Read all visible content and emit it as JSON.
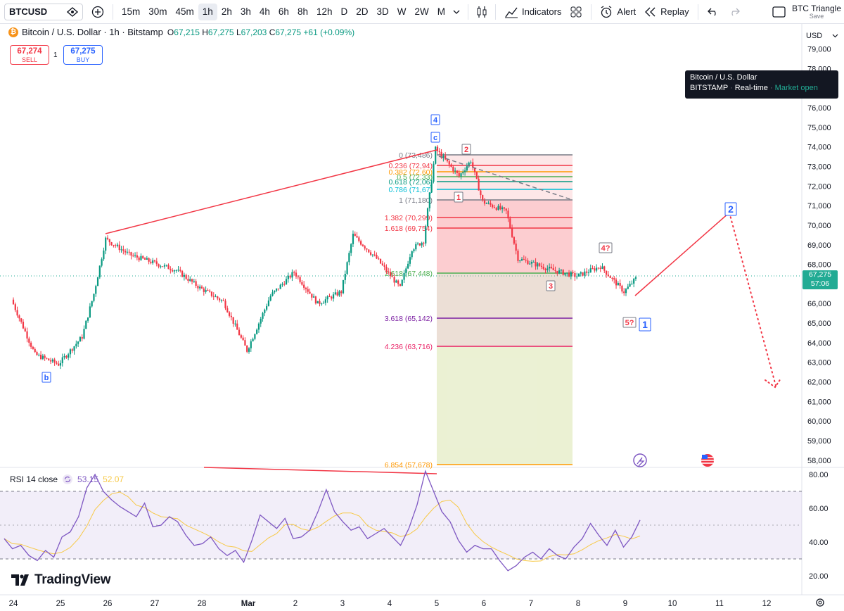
{
  "toolbar": {
    "symbol": "BTCUSD",
    "intervals": [
      "15m",
      "30m",
      "45m",
      "1h",
      "2h",
      "3h",
      "4h",
      "6h",
      "8h",
      "12h",
      "D",
      "2D",
      "3D",
      "W",
      "2W",
      "M"
    ],
    "active_interval": "1h",
    "indicators_label": "Indicators",
    "alert_label": "Alert",
    "replay_label": "Replay",
    "layout_name": "BTC Triangle",
    "save_label": "Save"
  },
  "legend": {
    "title": "Bitcoin / U.S. Dollar · 1h · Bitstamp",
    "o_label": "O",
    "o": "67,215",
    "h_label": "H",
    "h": "67,275",
    "l_label": "L",
    "l": "67,203",
    "c_label": "C",
    "c": "67,275",
    "change": "+61 (+0.09%)"
  },
  "trade": {
    "sell_price": "67,274",
    "sell_label": "SELL",
    "spread": "1",
    "buy_price": "67,275",
    "buy_label": "BUY"
  },
  "tooltip": {
    "title": "Bitcoin / U.S. Dollar",
    "exchange": "BITSTAMP",
    "mode": "Real-time",
    "status": "Market open"
  },
  "currency": "USD",
  "price_tag": {
    "price": "67,275",
    "countdown": "57:06"
  },
  "rsi": {
    "label": "RSI 14 close",
    "value": "53.15",
    "ma_value": "52.07"
  },
  "branding": "TradingView",
  "colors": {
    "up": "#089981",
    "down": "#f23645",
    "wave": "#f23645",
    "rsi": "#7e57c2",
    "rsi_ma": "#f7c948",
    "accent": "#2962ff"
  },
  "chart_data": {
    "type": "candlestick",
    "price_axis": {
      "ticks": [
        "79,000",
        "78,000",
        "77,000",
        "76,000",
        "75,000",
        "74,000",
        "73,000",
        "72,000",
        "71,000",
        "70,000",
        "69,000",
        "68,000",
        "67,000",
        "66,000",
        "65,000",
        "64,000",
        "63,000",
        "62,000",
        "61,000",
        "60,000",
        "59,000",
        "58,000"
      ]
    },
    "time_axis": {
      "ticks": [
        "24",
        "25",
        "26",
        "27",
        "28",
        "Mar",
        "2",
        "3",
        "4",
        "5",
        "6",
        "7",
        "8",
        "9",
        "10",
        "11",
        "12"
      ]
    },
    "price_path": [
      {
        "t": "Feb 24 00:00",
        "p": 66200
      },
      {
        "t": "Feb 24 12:00",
        "p": 63400
      },
      {
        "t": "Feb 25 00:00",
        "p": 62900
      },
      {
        "t": "Feb 25 12:00",
        "p": 64300
      },
      {
        "t": "Feb 25 18:00",
        "p": 66500
      },
      {
        "t": "Feb 26 00:00",
        "p": 69300
      },
      {
        "t": "Feb 26 12:00",
        "p": 68500
      },
      {
        "t": "Feb 27 00:00",
        "p": 68100
      },
      {
        "t": "Feb 27 12:00",
        "p": 67700
      },
      {
        "t": "Feb 28 00:00",
        "p": 66800
      },
      {
        "t": "Feb 28 12:00",
        "p": 66100
      },
      {
        "t": "Mar 1 00:00",
        "p": 63600
      },
      {
        "t": "Mar 1 12:00",
        "p": 66400
      },
      {
        "t": "Mar 2 00:00",
        "p": 67600
      },
      {
        "t": "Mar 2 12:00",
        "p": 66000
      },
      {
        "t": "Mar 3 00:00",
        "p": 66600
      },
      {
        "t": "Mar 3 06:00",
        "p": 69500
      },
      {
        "t": "Mar 3 18:00",
        "p": 68300
      },
      {
        "t": "Mar 4 06:00",
        "p": 66800
      },
      {
        "t": "Mar 4 12:00",
        "p": 68800
      },
      {
        "t": "Mar 4 18:00",
        "p": 69200
      },
      {
        "t": "Mar 5 00:00",
        "p": 73900
      },
      {
        "t": "Mar 5 12:00",
        "p": 72500
      },
      {
        "t": "Mar 5 18:00",
        "p": 73300
      },
      {
        "t": "Mar 6 00:00",
        "p": 71200
      },
      {
        "t": "Mar 6 12:00",
        "p": 70700
      },
      {
        "t": "Mar 6 18:00",
        "p": 68300
      },
      {
        "t": "Mar 7 12:00",
        "p": 67700
      },
      {
        "t": "Mar 8 00:00",
        "p": 67400
      },
      {
        "t": "Mar 8 12:00",
        "p": 67900
      },
      {
        "t": "Mar 9 00:00",
        "p": 66600
      },
      {
        "t": "Mar 9 06:00",
        "p": 67275
      }
    ],
    "fibonacci": {
      "levels": [
        {
          "ratio": "0",
          "price": "73,486",
          "color": "#787b86"
        },
        {
          "ratio": "0.236",
          "price": "72,94",
          "color": "#f23645"
        },
        {
          "ratio": "0.382",
          "price": "72,60",
          "color": "#ff9800"
        },
        {
          "ratio": "0.5",
          "price": "72,33",
          "color": "#4caf50"
        },
        {
          "ratio": "0.618",
          "price": "72,06",
          "color": "#089981"
        },
        {
          "ratio": "0.786",
          "price": "71,67",
          "color": "#00bcd4"
        },
        {
          "ratio": "1",
          "price": "71,180",
          "color": "#787b86"
        },
        {
          "ratio": "1.382",
          "price": "70,299",
          "color": "#f23645"
        },
        {
          "ratio": "1.618",
          "price": "69,754",
          "color": "#f23645"
        },
        {
          "ratio": "2.618",
          "price": "67,448",
          "color": "#4caf50"
        },
        {
          "ratio": "3.618",
          "price": "65,142",
          "color": "#7b1fa2"
        },
        {
          "ratio": "4.236",
          "price": "63,716",
          "color": "#e91e63"
        },
        {
          "ratio": "6.854",
          "price": "57,678",
          "color": "#ff9800"
        }
      ]
    },
    "wave_labels": [
      {
        "text": "b",
        "color": "#2962ff"
      },
      {
        "text": "4",
        "color": "#2962ff"
      },
      {
        "text": "c",
        "color": "#2962ff"
      },
      {
        "text": "2",
        "color": "#f23645"
      },
      {
        "text": "1",
        "color": "#f23645"
      },
      {
        "text": "3",
        "color": "#f23645"
      },
      {
        "text": "4?",
        "color": "#f23645"
      },
      {
        "text": "5?",
        "color": "#f23645"
      },
      {
        "text": "1",
        "color": "#2962ff"
      },
      {
        "text": "2",
        "color": "#2962ff"
      }
    ],
    "projection": {
      "from": 67200,
      "to_wave2": 70500,
      "to_target": 61800
    },
    "rsi_axis": {
      "ticks": [
        "80.00",
        "60.00",
        "40.00",
        "20.00"
      ],
      "bands": [
        70,
        50,
        30
      ]
    },
    "rsi_values": [
      42,
      36,
      38,
      32,
      29,
      35,
      31,
      43,
      46,
      55,
      72,
      80,
      70,
      65,
      61,
      58,
      55,
      63,
      49,
      50,
      55,
      52,
      44,
      38,
      39,
      43,
      36,
      32,
      35,
      28,
      41,
      56,
      52,
      48,
      54,
      42,
      43,
      47,
      58,
      71,
      58,
      52,
      47,
      49,
      42,
      45,
      48,
      43,
      38,
      48,
      62,
      82,
      70,
      58,
      52,
      41,
      34,
      38,
      36,
      36,
      29,
      23,
      26,
      31,
      34,
      30,
      36,
      32,
      30,
      37,
      42,
      51,
      44,
      38,
      47,
      37,
      43,
      53
    ]
  }
}
